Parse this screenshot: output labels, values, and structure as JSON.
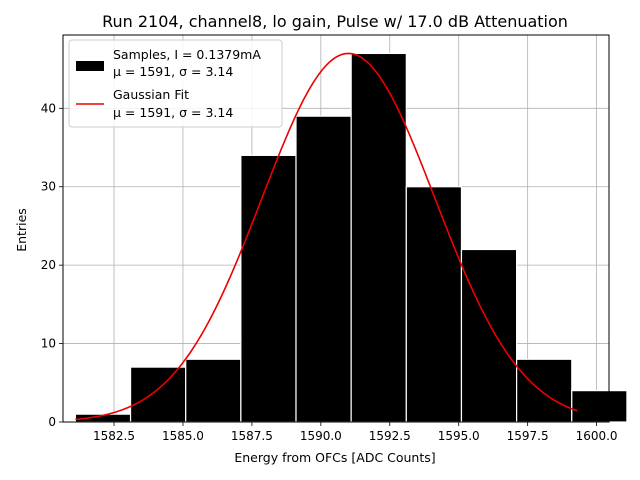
{
  "chart_data": {
    "type": "bar",
    "title": "Run 2104, channel8, lo gain, Pulse w/ 17.0 dB Attenuation",
    "xlabel": "Energy from OFCs [ADC Counts]",
    "ylabel": "Entries",
    "xlim": [
      1580.65,
      1600.45
    ],
    "ylim": [
      0,
      49.35
    ],
    "grid": true,
    "legend_position": "top-left",
    "xticks": [
      1582.5,
      1585.0,
      1587.5,
      1590.0,
      1592.5,
      1595.0,
      1597.5,
      1600.0
    ],
    "xtick_labels": [
      "1582.5",
      "1585.0",
      "1587.5",
      "1590.0",
      "1592.5",
      "1595.0",
      "1597.5",
      "1600.0"
    ],
    "yticks": [
      0,
      10,
      20,
      30,
      40
    ],
    "ytick_labels": [
      "0",
      "10",
      "20",
      "30",
      "40"
    ],
    "histogram": {
      "name_line1": "Samples, I = 0.1379mA",
      "name_line2": "μ = 1591, σ = 3.14",
      "color": "#000000",
      "edgecolor": "#ffffff",
      "bin_edges": [
        1581.1,
        1583.1,
        1585.1,
        1587.1,
        1589.1,
        1591.1,
        1593.1,
        1595.1,
        1597.1,
        1599.1,
        1601.1
      ],
      "counts": [
        1,
        7,
        8,
        34,
        39,
        47,
        30,
        22,
        8,
        4
      ]
    },
    "fit": {
      "name_line1": "Gaussian Fit",
      "name_line2": "μ = 1591, σ = 3.14",
      "color": "#ee0000",
      "mu": 1591.0,
      "sigma": 3.14,
      "amplitude": 47.0,
      "x_range": [
        1581.1,
        1599.3
      ]
    }
  }
}
